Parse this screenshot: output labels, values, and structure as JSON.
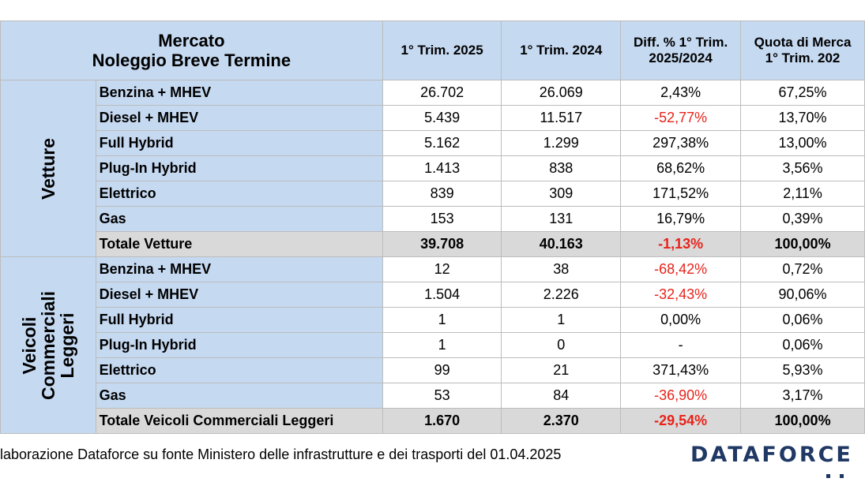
{
  "header": {
    "market_line1": "Mercato",
    "market_line2": "Noleggio Breve Termine",
    "col1": "1° Trim. 2025",
    "col2": "1° Trim. 2024",
    "col3_line1": "Diff. % 1° Trim.",
    "col3_line2": "2025/2024",
    "col4_line1": "Quota di Merca",
    "col4_line2": "1° Trim. 202"
  },
  "groups": {
    "vetture": "Vetture",
    "vcl_line1": "Veicoli",
    "vcl_line2": "Commerciali",
    "vcl_line3": "Leggeri"
  },
  "rows": [
    {
      "label": "Benzina + MHEV",
      "v2025": "26.702",
      "v2024": "26.069",
      "diff": "2,43%",
      "share": "67,25%"
    },
    {
      "label": "Diesel + MHEV",
      "v2025": "5.439",
      "v2024": "11.517",
      "diff": "-52,77%",
      "share": "13,70%"
    },
    {
      "label": "Full Hybrid",
      "v2025": "5.162",
      "v2024": "1.299",
      "diff": "297,38%",
      "share": "13,00%"
    },
    {
      "label": "Plug-In Hybrid",
      "v2025": "1.413",
      "v2024": "838",
      "diff": "68,62%",
      "share": "3,56%"
    },
    {
      "label": "Elettrico",
      "v2025": "839",
      "v2024": "309",
      "diff": "171,52%",
      "share": "2,11%"
    },
    {
      "label": "Gas",
      "v2025": "153",
      "v2024": "131",
      "diff": "16,79%",
      "share": "0,39%"
    },
    {
      "label": "Totale Vetture",
      "v2025": "39.708",
      "v2024": "40.163",
      "diff": "-1,13%",
      "share": "100,00%"
    },
    {
      "label": "Benzina + MHEV",
      "v2025": "12",
      "v2024": "38",
      "diff": "-68,42%",
      "share": "0,72%"
    },
    {
      "label": "Diesel + MHEV",
      "v2025": "1.504",
      "v2024": "2.226",
      "diff": "-32,43%",
      "share": "90,06%"
    },
    {
      "label": "Full Hybrid",
      "v2025": "1",
      "v2024": "1",
      "diff": "0,00%",
      "share": "0,06%"
    },
    {
      "label": "Plug-In Hybrid",
      "v2025": "1",
      "v2024": "0",
      "diff": "-",
      "share": "0,06%"
    },
    {
      "label": "Elettrico",
      "v2025": "99",
      "v2024": "21",
      "diff": "371,43%",
      "share": "5,93%"
    },
    {
      "label": "Gas",
      "v2025": "53",
      "v2024": "84",
      "diff": "-36,90%",
      "share": "3,17%"
    },
    {
      "label": "Totale Veicoli Commerciali Leggeri",
      "v2025": "1.670",
      "v2024": "2.370",
      "diff": "-29,54%",
      "share": "100,00%"
    }
  ],
  "footer": {
    "source": "laborazione Dataforce su fonte Ministero delle infrastrutture e dei trasporti del 01.04.2025"
  },
  "logo": {
    "text": "DATAFORCE",
    "color": "#1f3864"
  },
  "colors": {
    "header_bg": "#c5d9f1",
    "total_bg": "#d9d9d9",
    "negative": "#e8231a"
  }
}
